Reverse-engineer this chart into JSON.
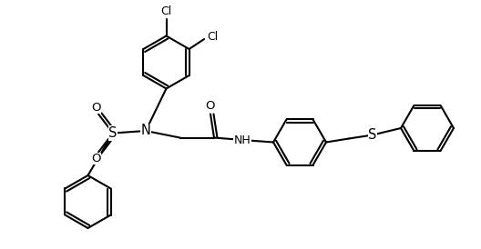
{
  "background_color": "#ffffff",
  "line_color": "#000000",
  "line_width": 1.5,
  "font_size": 8.5,
  "figsize": [
    5.28,
    2.74
  ],
  "dpi": 100,
  "xlim": [
    0,
    10.56
  ],
  "ylim": [
    0,
    5.48
  ]
}
